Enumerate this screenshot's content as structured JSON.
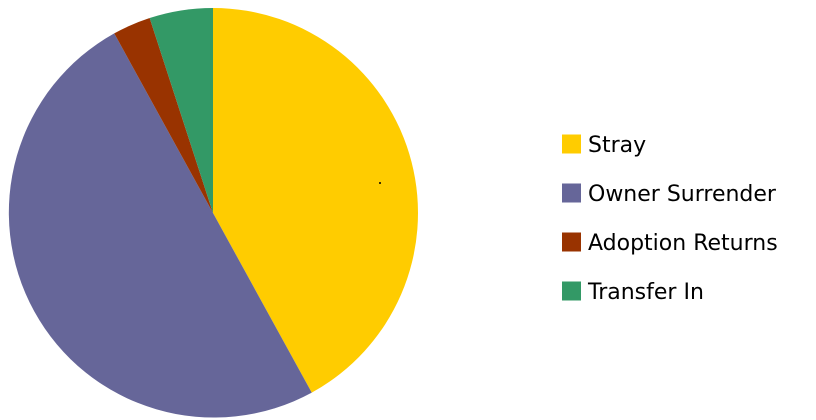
{
  "chart_data": {
    "type": "pie",
    "title": "",
    "start_angle": "12 o'clock",
    "direction": "clockwise",
    "legend_position": "right",
    "slices": [
      {
        "label": "Stray",
        "value": 42.0,
        "color": "#FFCC00"
      },
      {
        "label": "Owner Surrender",
        "value": 50.0,
        "color": "#666699"
      },
      {
        "label": "Adoption Returns",
        "value": 3.0,
        "color": "#993300"
      },
      {
        "label": "Transfer In",
        "value": 5.0,
        "color": "#339966"
      }
    ]
  }
}
